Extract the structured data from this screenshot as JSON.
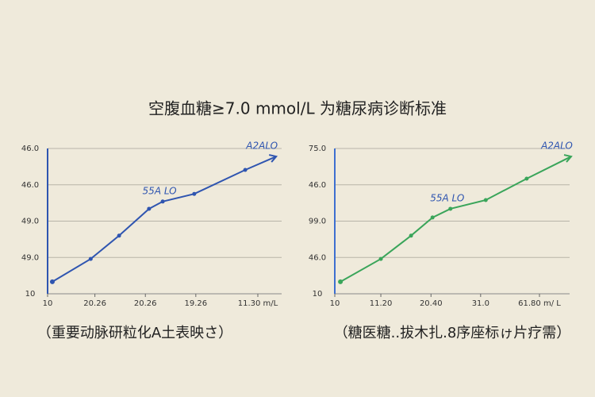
{
  "title": "空腹血糖≥7.0 mmol/L 为糖尿病诊断标准",
  "chart_data": [
    {
      "type": "line",
      "caption": "（重要动脉研粒化A土表映さ）",
      "color": "#2f55b0",
      "axis_color": "#2f55b0",
      "x": [
        0.09,
        0.82,
        1.36,
        1.93,
        2.19,
        2.79,
        3.76,
        4.35
      ],
      "values": [
        0.33,
        0.96,
        1.6,
        2.34,
        2.54,
        2.75,
        3.41,
        3.78
      ],
      "annotations": [
        "55A LO",
        "A2ALO"
      ],
      "xlim": [
        0,
        4
      ],
      "ylim": [
        0,
        4
      ],
      "xticks": [
        {
          "value": 0,
          "label": "10"
        },
        {
          "value": 0.9,
          "label": "20.26"
        },
        {
          "value": 1.86,
          "label": "20.26"
        },
        {
          "value": 2.82,
          "label": "19.26"
        },
        {
          "value": 4,
          "label": "11.30 m/L"
        }
      ],
      "yticks": [
        {
          "value": 0,
          "label": "10"
        },
        {
          "value": 1,
          "label": "49.0"
        },
        {
          "value": 2,
          "label": "49.0"
        },
        {
          "value": 3,
          "label": "46.0"
        },
        {
          "value": 4,
          "label": "46.0"
        }
      ],
      "grid": true
    },
    {
      "type": "line",
      "caption": "（糖医糖..拔木扎.8序座标ゖ片疗需）",
      "color": "#3aa55a",
      "axis_color": "#3d6fd0",
      "x": [
        0.11,
        0.9,
        1.49,
        1.91,
        2.26,
        2.95,
        3.75,
        4.62
      ],
      "values": [
        0.33,
        0.96,
        1.6,
        2.1,
        2.34,
        2.58,
        3.17,
        3.78
      ],
      "annotations": [
        "55A LO",
        "A2ALO"
      ],
      "xlim": [
        0,
        4
      ],
      "ylim": [
        0,
        4
      ],
      "xticks": [
        {
          "value": 0,
          "label": "10"
        },
        {
          "value": 0.9,
          "label": "11.20"
        },
        {
          "value": 1.88,
          "label": "20.40"
        },
        {
          "value": 2.85,
          "label": "31.0"
        },
        {
          "value": 4,
          "label": "61.80 m/ L"
        }
      ],
      "yticks": [
        {
          "value": 0,
          "label": "10"
        },
        {
          "value": 1,
          "label": "46.0"
        },
        {
          "value": 2,
          "label": "99.0"
        },
        {
          "value": 3,
          "label": "46.0"
        },
        {
          "value": 4,
          "label": "75.0"
        }
      ],
      "grid": true
    }
  ]
}
